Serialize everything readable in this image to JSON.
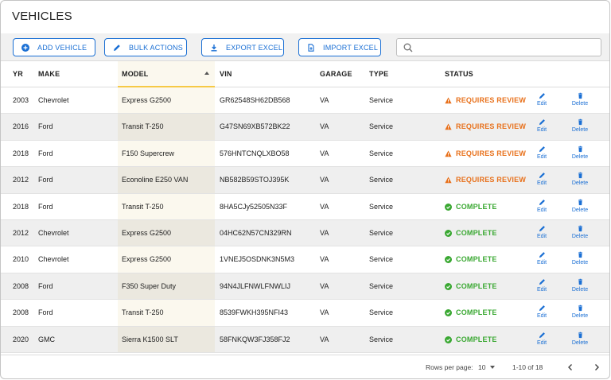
{
  "page": {
    "title": "VEHICLES"
  },
  "toolbar": {
    "add_label": "ADD VEHICLE",
    "bulk_label": "BULK ACTIONS",
    "export_label": "EXPORT EXCEL",
    "import_label": "IMPORT EXCEL",
    "search_placeholder": ""
  },
  "columns": {
    "yr": "YR",
    "make": "MAKE",
    "model": "MODEL",
    "vin": "VIN",
    "garage": "GARAGE",
    "type": "TYPE",
    "status": "STATUS"
  },
  "sort": {
    "column": "MODEL",
    "direction": "ascending"
  },
  "actions": {
    "edit": "Edit",
    "delete": "Delete"
  },
  "rows": [
    {
      "yr": "2003",
      "make": "Chevrolet",
      "model": "Express G2500",
      "vin": "GR62548SH62DB568",
      "garage": "VA",
      "type": "Service",
      "status": "REQUIRES REVIEW",
      "status_kind": "review"
    },
    {
      "yr": "2016",
      "make": "Ford",
      "model": "Transit T-250",
      "vin": "G47SN69XB572BK22",
      "garage": "VA",
      "type": "Service",
      "status": "REQUIRES REVIEW",
      "status_kind": "review"
    },
    {
      "yr": "2018",
      "make": "Ford",
      "model": "F150 Supercrew",
      "vin": "576HNTCNQLXBO58",
      "garage": "VA",
      "type": "Service",
      "status": "REQUIRES REVIEW",
      "status_kind": "review"
    },
    {
      "yr": "2012",
      "make": "Ford",
      "model": "Econoline E250 VAN",
      "vin": "NB582B59STOJ395K",
      "garage": "VA",
      "type": "Service",
      "status": "REQUIRES REVIEW",
      "status_kind": "review"
    },
    {
      "yr": "2018",
      "make": "Ford",
      "model": "Transit T-250",
      "vin": "8HA5CJy52505N33F",
      "garage": "VA",
      "type": "Service",
      "status": "COMPLETE",
      "status_kind": "complete"
    },
    {
      "yr": "2012",
      "make": "Chevrolet",
      "model": "Express G2500",
      "vin": "04HC62N57CN329RN",
      "garage": "VA",
      "type": "Service",
      "status": "COMPLETE",
      "status_kind": "complete"
    },
    {
      "yr": "2010",
      "make": "Chevrolet",
      "model": "Express G2500",
      "vin": "1VNEJ5OSDNK3N5M3",
      "garage": "VA",
      "type": "Service",
      "status": "COMPLETE",
      "status_kind": "complete"
    },
    {
      "yr": "2008",
      "make": "Ford",
      "model": "F350 Super Duty",
      "vin": "94N4JLFNWLFNWLIJ",
      "garage": "VA",
      "type": "Service",
      "status": "COMPLETE",
      "status_kind": "complete"
    },
    {
      "yr": "2008",
      "make": "Ford",
      "model": "Transit T-250",
      "vin": "8539FWKH395NFI43",
      "garage": "VA",
      "type": "Service",
      "status": "COMPLETE",
      "status_kind": "complete"
    },
    {
      "yr": "2020",
      "make": "GMC",
      "model": "Sierra K1500 SLT",
      "vin": "58FNKQW3FJ358FJ2",
      "garage": "VA",
      "type": "Service",
      "status": "COMPLETE",
      "status_kind": "complete"
    }
  ],
  "pagination": {
    "rows_per_page_label": "Rows per page:",
    "rows_per_page_value": "10",
    "range_label": "1-10 of 18"
  },
  "colors": {
    "accent": "#1a6fd4",
    "review": "#e8711c",
    "complete": "#3aa832",
    "sort_highlight": "#f6c945"
  },
  "icons": {
    "add": "plus-circle-icon",
    "bulk": "pencil-icon",
    "export": "download-icon",
    "import": "file-import-icon",
    "search": "search-icon",
    "edit": "pencil-icon",
    "delete": "trash-icon",
    "review": "warning-triangle-icon",
    "complete": "check-circle-icon"
  }
}
